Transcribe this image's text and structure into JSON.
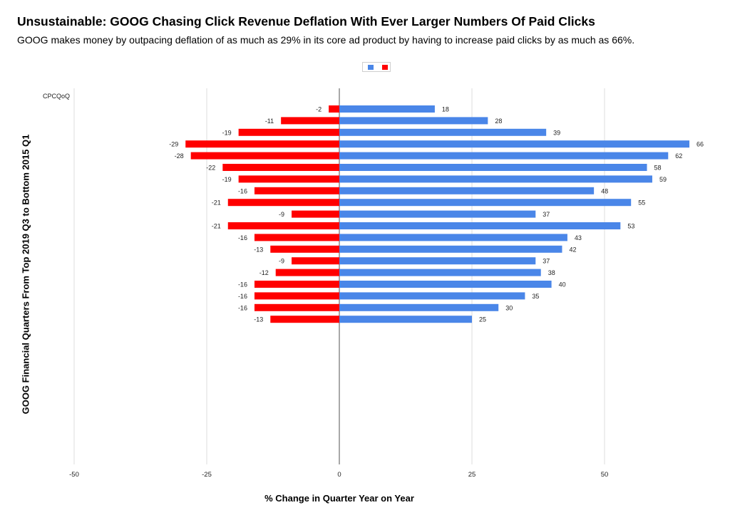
{
  "chart_data": {
    "type": "bar",
    "orientation": "horizontal",
    "title": "Unsustainable: GOOG Chasing Click Revenue Deflation With Ever Larger Numbers Of Paid Clicks",
    "subtitle": "GOOG makes money by outpacing deflation of as much as 29% in its core ad product by having to increase paid clicks by as much as 66%.",
    "xlabel": "% Change in Quarter Year on Year",
    "ylabel": "GOOG Financial Quarters From Top 2019 Q3 to Bottom 2015 Q1",
    "category_header": "CPCQoQ",
    "xlim": [
      -50,
      66
    ],
    "xticks": [
      -50,
      -25,
      0,
      25,
      50
    ],
    "grid": true,
    "legend_position": "top",
    "series": [
      {
        "color": "#ff0000",
        "values": [
          -2,
          -11,
          -19,
          -29,
          -28,
          -22,
          -19,
          -16,
          -21,
          -9,
          -21,
          -16,
          -13,
          -9,
          -12,
          -16,
          -16,
          -16,
          -13
        ]
      },
      {
        "color": "#4a86e8",
        "values": [
          18,
          28,
          39,
          66,
          62,
          58,
          59,
          48,
          55,
          37,
          53,
          43,
          42,
          37,
          38,
          40,
          35,
          30,
          25
        ]
      }
    ]
  },
  "legend": {
    "colors": [
      "#4a86e8",
      "#ff0000"
    ]
  }
}
